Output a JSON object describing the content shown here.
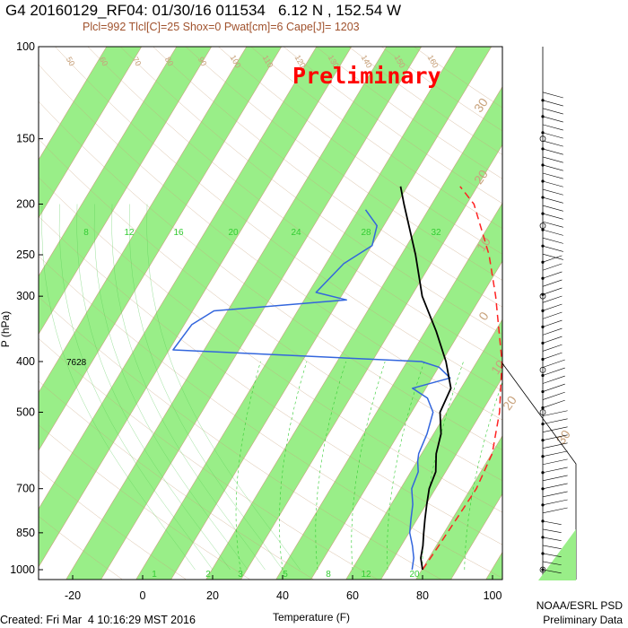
{
  "header": {
    "title": "G4 20160129_RF04: 01/30/16 011534   6.12 N , 152.54 W",
    "subtitle": "Plcl=992 Tlcl[C]=25 Shox=0 Pwat[cm]=6 Cape[J]= 1203",
    "watermark": "Preliminary"
  },
  "footer": {
    "created": "Created: Fri Mar  4 10:16:29 MST 2016",
    "org": "NOAA/ESRL PSD",
    "note": "Preliminary Data"
  },
  "colors": {
    "band": "#99ee88",
    "temperature": "#000000",
    "dewpoint": "#3366dd",
    "parcel": "#ff2222",
    "isotherm": "#c8a27c",
    "mixing": "#33cc33"
  },
  "chart_data": {
    "type": "skew-t",
    "xlabel": "Temperature (F)",
    "ylabel": "P (hPa)",
    "x_ticks": [
      "-20",
      "0",
      "20",
      "40",
      "60",
      "80",
      "100"
    ],
    "y_ticks": [
      "100",
      "150",
      "200",
      "250",
      "300",
      "400",
      "500",
      "700",
      "850",
      "1000"
    ],
    "xlim": [
      -28,
      112
    ],
    "ylim": [
      100,
      1050
    ],
    "mixing_ratio_labels": [
      "8",
      "12",
      "16",
      "20",
      "24",
      "28",
      "32"
    ],
    "mixing_ratio_bottom_labels": [
      "1",
      "2",
      "3",
      "5",
      "8",
      "12",
      "20"
    ],
    "dry_adiabat_labels": [
      "50",
      "60",
      "70",
      "80",
      "90",
      "100",
      "110",
      "120",
      "130",
      "140",
      "150",
      "160"
    ],
    "skewed_isotherm_labels": [
      "30",
      "20",
      "10",
      "0",
      "10",
      "20",
      "30"
    ],
    "annotation": "7628",
    "temperature_series": {
      "name": "",
      "p": [
        1000,
        950,
        900,
        850,
        800,
        750,
        700,
        650,
        600,
        550,
        500,
        450,
        400,
        350,
        300,
        250,
        200,
        185
      ],
      "t_f": [
        80,
        77.5,
        76,
        74,
        72,
        70,
        68,
        67,
        64,
        62,
        58,
        57,
        51,
        43,
        33,
        24,
        12,
        8
      ]
    },
    "dewpoint_series": {
      "name": "",
      "p": [
        1000,
        950,
        900,
        850,
        800,
        750,
        700,
        650,
        620,
        600,
        550,
        500,
        470,
        450,
        430,
        410,
        400,
        380,
        340,
        320,
        305,
        295,
        260,
        240,
        220,
        205
      ],
      "td_f": [
        77,
        75.5,
        73,
        70,
        68,
        66,
        63,
        62,
        60,
        59,
        58,
        56,
        52,
        46,
        55,
        50,
        44,
        -29,
        -28,
        -24,
        12,
        2,
        5,
        10,
        8,
        2
      ]
    },
    "parcel_series": {
      "name": "",
      "p": [
        1000,
        900,
        800,
        700,
        600,
        500,
        400,
        300,
        250,
        200,
        185
      ],
      "t_f": [
        80,
        80.5,
        81,
        81.5,
        80,
        75,
        67,
        54,
        45,
        32,
        25
      ]
    },
    "wind_barbs": true,
    "grid": "on"
  }
}
